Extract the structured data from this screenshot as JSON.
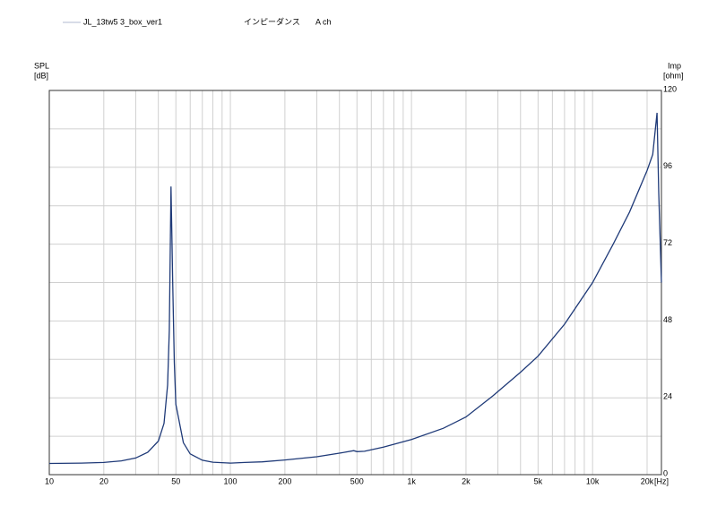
{
  "chart_data": {
    "type": "line",
    "title": "インピーダンス",
    "subtitle": "A ch",
    "y_axis_label": "SPL",
    "y_axis_unit": "[dB]",
    "y2_axis_label": "Imp",
    "y2_axis_unit": "[ohm]",
    "x_axis_unit": "[Hz]",
    "x_log_scale": true,
    "grid": true,
    "xlim": [
      10,
      24000
    ],
    "xticks": [
      10,
      20,
      50,
      100,
      200,
      500,
      {
        "value": 1000,
        "label": "1k"
      },
      {
        "value": 2000,
        "label": "2k"
      },
      {
        "value": 5000,
        "label": "5k"
      },
      {
        "value": 10000,
        "label": "10k"
      },
      {
        "value": 20000,
        "label": "20k"
      }
    ],
    "x_minor_ticks": [
      30,
      40,
      60,
      70,
      80,
      90,
      300,
      400,
      600,
      700,
      800,
      900,
      3000,
      4000,
      6000,
      7000,
      8000,
      9000
    ],
    "y2lim": [
      0,
      120
    ],
    "y2ticks": [
      0,
      24,
      48,
      72,
      96,
      120
    ],
    "y2_minor_ticks": [
      12,
      36,
      60,
      84,
      108
    ],
    "x": [
      10,
      15,
      20,
      25,
      30,
      35,
      40,
      43,
      45,
      46,
      47,
      48,
      49,
      50,
      55,
      60,
      70,
      80,
      100,
      120,
      150,
      200,
      300,
      400,
      480,
      500,
      550,
      700,
      1000,
      1500,
      2000,
      2800,
      4000,
      5000,
      7000,
      10000,
      13000,
      16000,
      20000,
      21500,
      22700,
      23200,
      24000
    ],
    "series": [
      {
        "name": "JL_13tw5 3_box_ver1",
        "color": "#1f3a78",
        "axis": "y2",
        "values": [
          3.5,
          3.6,
          3.8,
          4.3,
          5.2,
          7,
          10.5,
          16,
          28,
          45,
          90,
          60,
          35,
          22,
          10,
          6.5,
          4.5,
          3.9,
          3.6,
          3.8,
          4,
          4.6,
          5.6,
          6.7,
          7.5,
          7.2,
          7.3,
          8.6,
          11,
          14.5,
          18,
          24.5,
          32,
          37,
          47,
          60,
          72,
          82,
          95,
          100,
          113,
          88,
          60
        ]
      }
    ]
  }
}
